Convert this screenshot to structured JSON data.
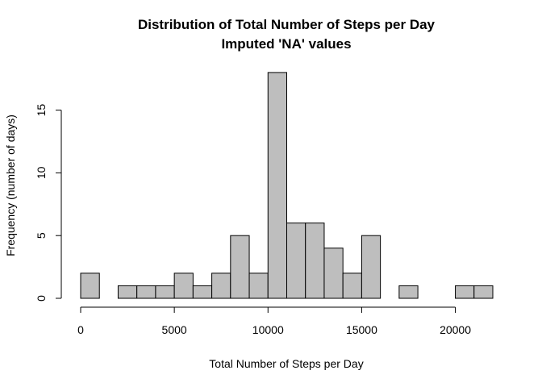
{
  "chart_data": {
    "type": "bar",
    "title": "Distribution of Total Number of Steps per Day",
    "subtitle": "Imputed 'NA' values",
    "xlabel": "Total Number of Steps per Day",
    "ylabel": "Frequency (number of days)",
    "xlim": [
      0,
      22000
    ],
    "ylim": [
      0,
      18
    ],
    "x_ticks": [
      0,
      5000,
      10000,
      15000,
      20000
    ],
    "y_ticks": [
      0,
      5,
      10,
      15
    ],
    "bin_width": 1000,
    "bins": [
      {
        "start": 0,
        "end": 1000,
        "count": 2
      },
      {
        "start": 1000,
        "end": 2000,
        "count": 0
      },
      {
        "start": 2000,
        "end": 3000,
        "count": 1
      },
      {
        "start": 3000,
        "end": 4000,
        "count": 1
      },
      {
        "start": 4000,
        "end": 5000,
        "count": 1
      },
      {
        "start": 5000,
        "end": 6000,
        "count": 2
      },
      {
        "start": 6000,
        "end": 7000,
        "count": 1
      },
      {
        "start": 7000,
        "end": 8000,
        "count": 2
      },
      {
        "start": 8000,
        "end": 9000,
        "count": 5
      },
      {
        "start": 9000,
        "end": 10000,
        "count": 2
      },
      {
        "start": 10000,
        "end": 11000,
        "count": 18
      },
      {
        "start": 11000,
        "end": 12000,
        "count": 6
      },
      {
        "start": 12000,
        "end": 13000,
        "count": 6
      },
      {
        "start": 13000,
        "end": 14000,
        "count": 4
      },
      {
        "start": 14000,
        "end": 15000,
        "count": 2
      },
      {
        "start": 15000,
        "end": 16000,
        "count": 5
      },
      {
        "start": 16000,
        "end": 17000,
        "count": 0
      },
      {
        "start": 17000,
        "end": 18000,
        "count": 1
      },
      {
        "start": 18000,
        "end": 19000,
        "count": 0
      },
      {
        "start": 19000,
        "end": 20000,
        "count": 0
      },
      {
        "start": 20000,
        "end": 21000,
        "count": 1
      },
      {
        "start": 21000,
        "end": 22000,
        "count": 1
      }
    ],
    "bar_color": "#bebebe",
    "grid": false
  }
}
